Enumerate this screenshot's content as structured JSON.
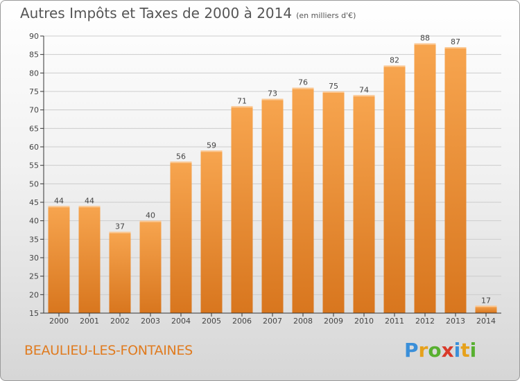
{
  "header": {
    "title": "Autres Impôts et Taxes de 2000 à 2014",
    "subtitle": "(en milliers d'€)"
  },
  "footer": {
    "town": "BEAULIEU-LES-FONTAINES",
    "logo": [
      "P",
      "r",
      "o",
      "x",
      "i",
      "t",
      "i"
    ]
  },
  "colors": {
    "bar_top": "#f7a54f",
    "bar_bottom": "#d8761e",
    "grid": "#cccccc",
    "axis": "#333333",
    "label": "#444444"
  },
  "chart_data": {
    "type": "bar",
    "categories": [
      "2000",
      "2001",
      "2002",
      "2003",
      "2004",
      "2005",
      "2006",
      "2007",
      "2008",
      "2009",
      "2010",
      "2011",
      "2012",
      "2013",
      "2014"
    ],
    "values": [
      44,
      44,
      37,
      40,
      56,
      59,
      71,
      73,
      76,
      75,
      74,
      82,
      88,
      87,
      17
    ],
    "ylim": [
      15,
      90
    ],
    "yticks": [
      15,
      20,
      25,
      30,
      35,
      40,
      45,
      50,
      55,
      60,
      65,
      70,
      75,
      80,
      85,
      90
    ],
    "grid": true,
    "data_labels": true
  }
}
